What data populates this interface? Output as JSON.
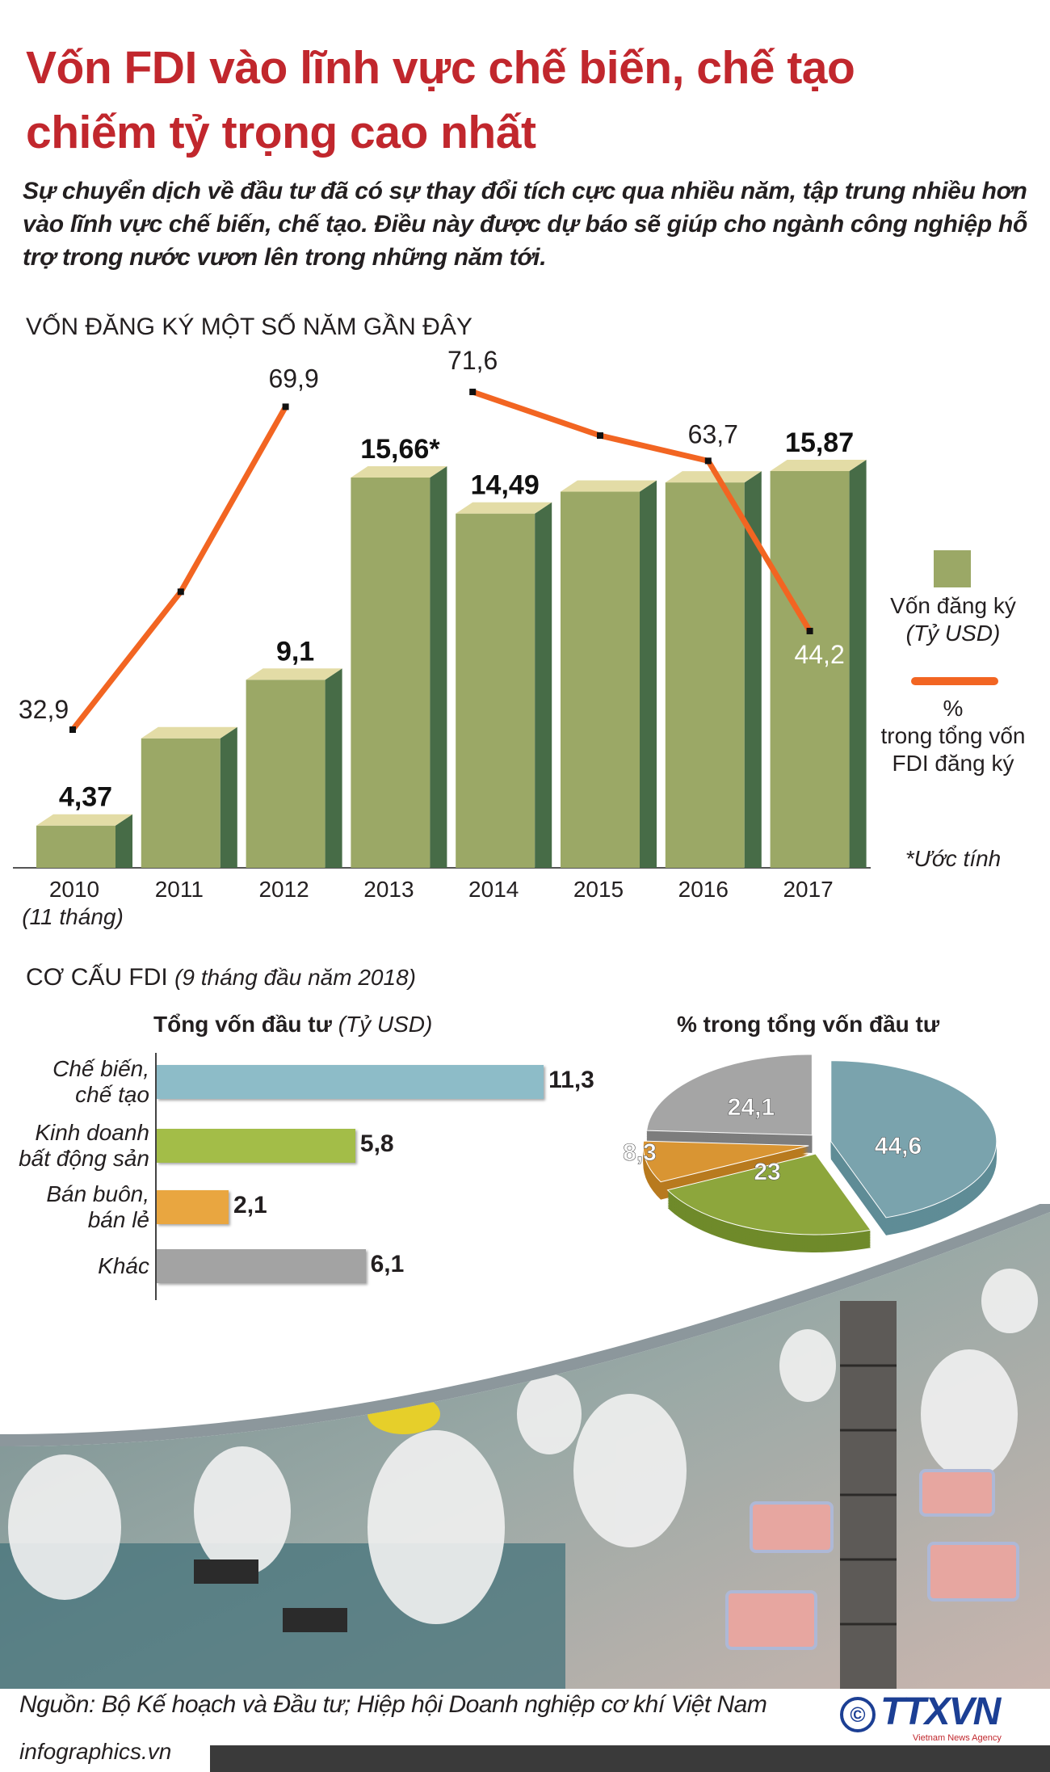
{
  "header": {
    "title_line1": "Vốn FDI vào lĩnh vực chế biến, chế tạo",
    "title_line2": "chiếm tỷ trọng cao nhất",
    "intro": "Sự chuyển dịch về đầu tư đã có sự thay đổi tích cực qua nhiều năm, tập trung nhiều hơn vào lĩnh vực chế biến, chế tạo. Điều này được dự báo sẽ giúp cho ngành công nghiệp hỗ trợ trong nước vươn lên trong những năm tới."
  },
  "colors": {
    "title_red": "#c1272d",
    "bar_front": "#9ba866",
    "bar_side": "#476c47",
    "bar_top": "#e3dca6",
    "line_orange": "#f26522",
    "manufacturing": "#8dbcc8",
    "real_estate": "#a3bd48",
    "retail": "#e9a640",
    "other": "#a3a3a3"
  },
  "chart_data": [
    {
      "type": "bar+line",
      "title": "VỐN ĐĂNG KÝ MỘT SỐ NĂM GẦN ĐÂY",
      "categories": [
        "2010",
        "2011",
        "2012",
        "2013",
        "2014",
        "2015",
        "2016",
        "2017"
      ],
      "category_note": "(11 tháng)",
      "series": [
        {
          "name": "Vốn đăng ký",
          "unit": "(Tỷ USD)",
          "type": "bar",
          "values": [
            4.37,
            7.2,
            9.1,
            15.66,
            14.49,
            15.2,
            15.5,
            15.87
          ],
          "labels": [
            "4,37",
            "",
            "9,1",
            "15,66*",
            "14,49",
            "",
            "",
            "15,87"
          ]
        },
        {
          "name": "% trong tổng vốn FDI đăng ký",
          "name_lines": [
            "%",
            "trong tổng vốn",
            "FDI đăng ký"
          ],
          "type": "line",
          "values": [
            32.9,
            48.7,
            69.9,
            null,
            71.6,
            66.6,
            63.7,
            44.2
          ],
          "labels": [
            "32,9",
            "",
            "69,9",
            "",
            "71,6",
            "",
            "63,7",
            "44,2"
          ]
        }
      ],
      "bar_ylim": [
        3,
        16
      ],
      "line_ylim": [
        30,
        75
      ],
      "footnote": "*Ước tính",
      "grid": false,
      "legend": "right"
    },
    {
      "type": "bar",
      "orientation": "horizontal",
      "section_title": "CƠ CẤU FDI",
      "section_period": "(9 tháng đầu năm 2018)",
      "title": "Tổng vốn đầu tư",
      "title_unit": "(Tỷ USD)",
      "categories": [
        [
          "Chế biến,",
          "chế tạo"
        ],
        [
          "Kinh doanh",
          "bất động sản"
        ],
        [
          "Bán buôn,",
          "bán lẻ"
        ],
        [
          "Khác"
        ]
      ],
      "values": [
        11.3,
        5.8,
        2.1,
        6.1
      ],
      "labels": [
        "11,3",
        "5,8",
        "2,1",
        "6,1"
      ],
      "xlim": [
        0,
        11.3
      ]
    },
    {
      "type": "pie",
      "title": "% trong tổng vốn đầu tư",
      "slices": [
        {
          "category": "Chế biến, chế tạo",
          "value": 44.6,
          "label": "44,6"
        },
        {
          "category": "Kinh doanh bất động sản",
          "value": 23,
          "label": "23"
        },
        {
          "category": "Bán buôn, bán lẻ",
          "value": 8.3,
          "label": "8,3"
        },
        {
          "category": "Khác",
          "value": 24.1,
          "label": "24,1"
        }
      ],
      "style": "3d-exploded"
    }
  ],
  "footer": {
    "source": "Nguồn: Bộ Kế hoạch và Đầu tư; Hiệp hội Doanh nghiệp cơ khí Việt Nam",
    "site": "infographics.vn",
    "copyright": "©",
    "logo_text": "TTXVN",
    "logo_sub": "Vietnam News Agency"
  }
}
